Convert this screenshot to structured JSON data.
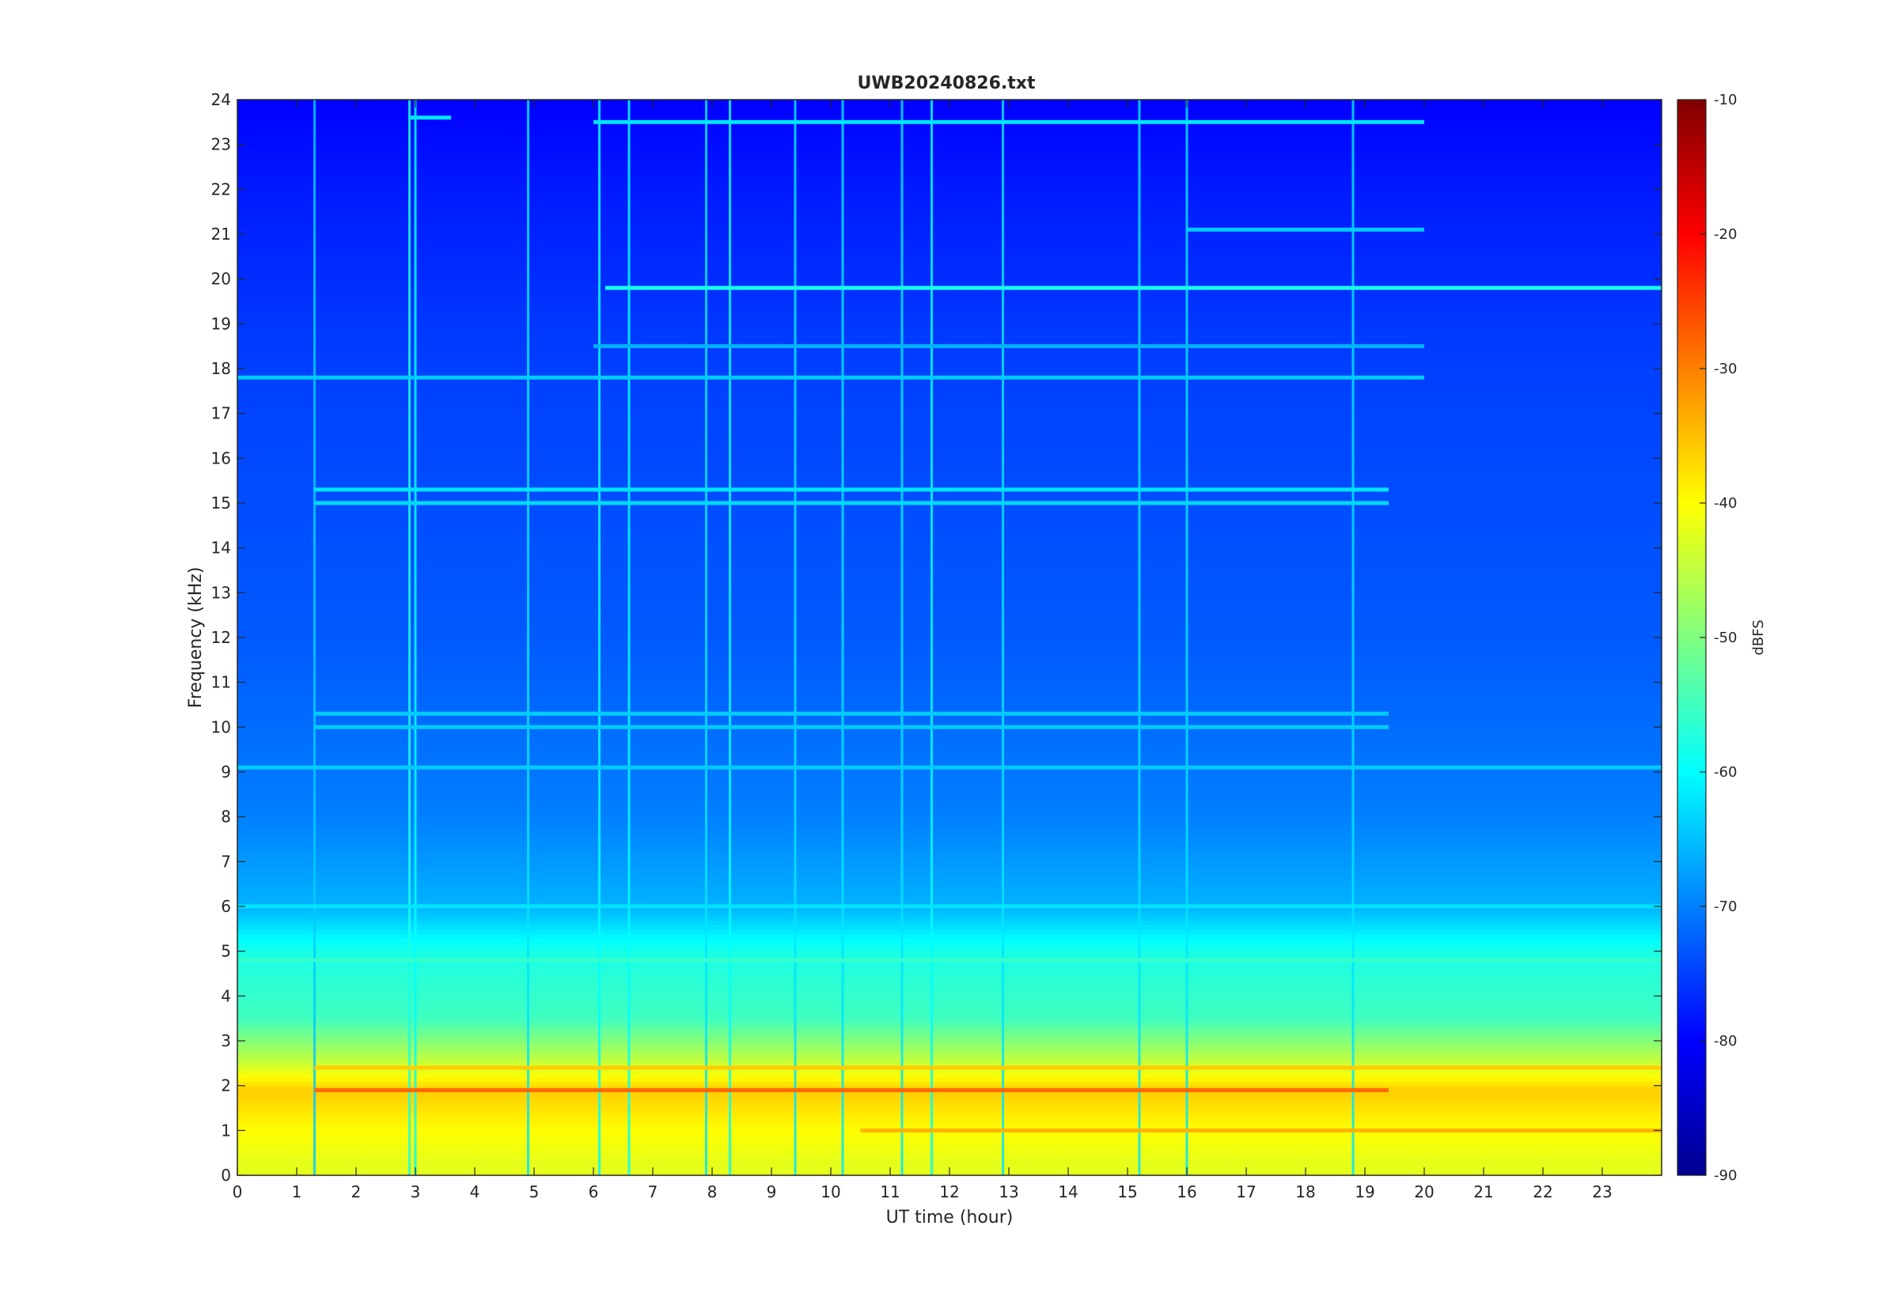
{
  "chart_data": {
    "type": "heatmap",
    "title": "UWB20240826.txt",
    "xlabel": "UT time (hour)",
    "ylabel": "Frequency (kHz)",
    "xlim": [
      0,
      24
    ],
    "ylim": [
      0,
      24
    ],
    "x_ticks": [
      "0",
      "1",
      "2",
      "3",
      "4",
      "5",
      "6",
      "7",
      "8",
      "9",
      "10",
      "11",
      "12",
      "13",
      "14",
      "15",
      "16",
      "17",
      "18",
      "19",
      "20",
      "21",
      "22",
      "23"
    ],
    "y_ticks": [
      "0",
      "1",
      "2",
      "3",
      "4",
      "5",
      "6",
      "7",
      "8",
      "9",
      "10",
      "11",
      "12",
      "13",
      "14",
      "15",
      "16",
      "17",
      "18",
      "19",
      "20",
      "21",
      "22",
      "23",
      "24"
    ],
    "colorbar": {
      "label": "dBFS",
      "clim": [
        -90,
        -10
      ],
      "colormap": "jet",
      "ticks": [
        "-10",
        "-20",
        "-30",
        "-40",
        "-50",
        "-60",
        "-70",
        "-80",
        "-90"
      ]
    },
    "background_level_dbfs": [
      {
        "f_khz": 0.3,
        "dbfs": -42
      },
      {
        "f_khz": 1.0,
        "dbfs": -40
      },
      {
        "f_khz": 1.9,
        "dbfs": -36
      },
      {
        "f_khz": 2.5,
        "dbfs": -44
      },
      {
        "f_khz": 3.5,
        "dbfs": -55
      },
      {
        "f_khz": 5.0,
        "dbfs": -58
      },
      {
        "f_khz": 6.0,
        "dbfs": -66
      },
      {
        "f_khz": 8.0,
        "dbfs": -70
      },
      {
        "f_khz": 12.0,
        "dbfs": -73
      },
      {
        "f_khz": 18.0,
        "dbfs": -75
      },
      {
        "f_khz": 22.0,
        "dbfs": -78
      },
      {
        "f_khz": 24.0,
        "dbfs": -80
      }
    ],
    "horizontal_lines": [
      {
        "f_khz": 19.8,
        "t_start": 6.2,
        "t_end": 24,
        "dbfs": -58
      },
      {
        "f_khz": 23.5,
        "t_start": 6.0,
        "t_end": 20.0,
        "dbfs": -62
      },
      {
        "f_khz": 23.6,
        "t_start": 2.9,
        "t_end": 3.6,
        "dbfs": -62
      },
      {
        "f_khz": 17.8,
        "t_start": 0,
        "t_end": 20.0,
        "dbfs": -64
      },
      {
        "f_khz": 18.5,
        "t_start": 6.0,
        "t_end": 20.0,
        "dbfs": -66
      },
      {
        "f_khz": 21.1,
        "t_start": 16.0,
        "t_end": 20.0,
        "dbfs": -64
      },
      {
        "f_khz": 15.3,
        "t_start": 1.3,
        "t_end": 19.4,
        "dbfs": -62
      },
      {
        "f_khz": 15.0,
        "t_start": 1.3,
        "t_end": 19.4,
        "dbfs": -63
      },
      {
        "f_khz": 10.3,
        "t_start": 1.3,
        "t_end": 19.4,
        "dbfs": -64
      },
      {
        "f_khz": 10.0,
        "t_start": 1.3,
        "t_end": 19.4,
        "dbfs": -64
      },
      {
        "f_khz": 9.1,
        "t_start": 0,
        "t_end": 24,
        "dbfs": -64
      },
      {
        "f_khz": 6.0,
        "t_start": 0,
        "t_end": 24,
        "dbfs": -62
      },
      {
        "f_khz": 4.8,
        "t_start": 0,
        "t_end": 24,
        "dbfs": -56
      },
      {
        "f_khz": 2.4,
        "t_start": 1.3,
        "t_end": 24,
        "dbfs": -36
      },
      {
        "f_khz": 1.9,
        "t_start": 1.3,
        "t_end": 19.4,
        "dbfs": -28
      },
      {
        "f_khz": 1.0,
        "t_start": 10.5,
        "t_end": 24,
        "dbfs": -34
      }
    ],
    "vertical_bursts": [
      {
        "t_hour": 1.3,
        "dbfs": -64
      },
      {
        "t_hour": 2.9,
        "dbfs": -58
      },
      {
        "t_hour": 3.0,
        "dbfs": -60
      },
      {
        "t_hour": 4.9,
        "dbfs": -62
      },
      {
        "t_hour": 6.1,
        "dbfs": -60
      },
      {
        "t_hour": 6.6,
        "dbfs": -60
      },
      {
        "t_hour": 7.9,
        "dbfs": -62
      },
      {
        "t_hour": 8.3,
        "dbfs": -60
      },
      {
        "t_hour": 9.4,
        "dbfs": -62
      },
      {
        "t_hour": 10.2,
        "dbfs": -62
      },
      {
        "t_hour": 11.2,
        "dbfs": -62
      },
      {
        "t_hour": 11.7,
        "dbfs": -60
      },
      {
        "t_hour": 12.9,
        "dbfs": -62
      },
      {
        "t_hour": 15.2,
        "dbfs": -62
      },
      {
        "t_hour": 16.0,
        "dbfs": -62
      },
      {
        "t_hour": 18.8,
        "dbfs": -62
      }
    ]
  }
}
